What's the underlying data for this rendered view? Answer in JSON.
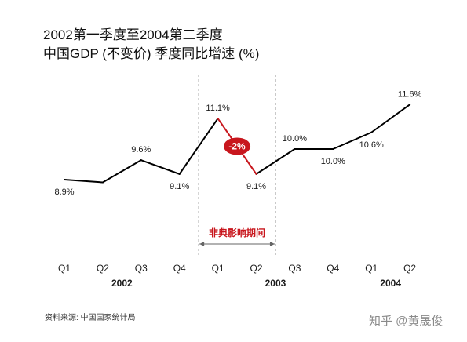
{
  "title_line1": "2002第一季度至2004第二季度",
  "title_line2": "中国GDP (不变价) 季度同比增速 (%)",
  "source": "资料来源:  中国国家统计局",
  "watermark": "知乎 @黄晟俊",
  "chart_data": {
    "type": "line",
    "categories": [
      "Q1",
      "Q2",
      "Q3",
      "Q4",
      "Q1",
      "Q2",
      "Q3",
      "Q4",
      "Q1",
      "Q2"
    ],
    "years": [
      {
        "label": "2002",
        "start": 0,
        "end": 3
      },
      {
        "label": "2003",
        "start": 4,
        "end": 7
      },
      {
        "label": "2004",
        "start": 8,
        "end": 9
      }
    ],
    "values": [
      8.9,
      8.8,
      9.6,
      9.1,
      11.1,
      9.1,
      10.0,
      10.0,
      10.6,
      11.6
    ],
    "labels": [
      "8.9%",
      "",
      "9.6%",
      "9.1%",
      "11.1%",
      "9.1%",
      "10.0%",
      "10.0%",
      "10.6%",
      "11.6%"
    ],
    "label_pos": [
      "below",
      "",
      "above",
      "below",
      "above",
      "below",
      "above",
      "below",
      "below",
      "above"
    ],
    "ylim": [
      7.6,
      12.4
    ],
    "highlight": {
      "from_index": 4,
      "to_index": 5,
      "color": "#c8161d",
      "badge": "-2%",
      "period_label": "非典影响期间",
      "period_start": 3.5,
      "period_end": 5.5
    },
    "line_color": "#000000"
  }
}
